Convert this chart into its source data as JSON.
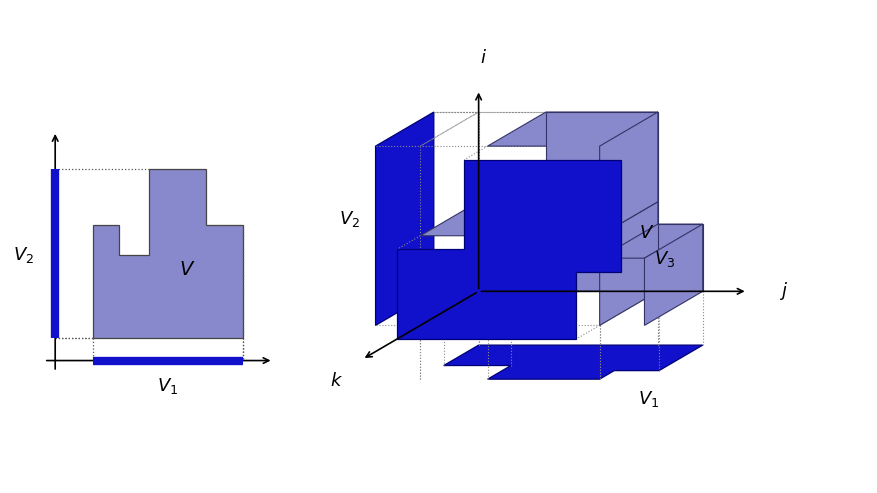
{
  "bg_color": "#ffffff",
  "light_blue": "#8888cc",
  "dark_blue": "#1111cc",
  "fig_width": 8.78,
  "fig_height": 4.93,
  "left_V1_label": "$V_1$",
  "left_V2_label": "$V_2$",
  "right_V1_label": "$V_1$",
  "right_V2_label": "$V_2$",
  "right_V3_label": "$V_3$",
  "right_i_label": "$i$",
  "right_j_label": "$j$",
  "right_k_label": "$k$"
}
